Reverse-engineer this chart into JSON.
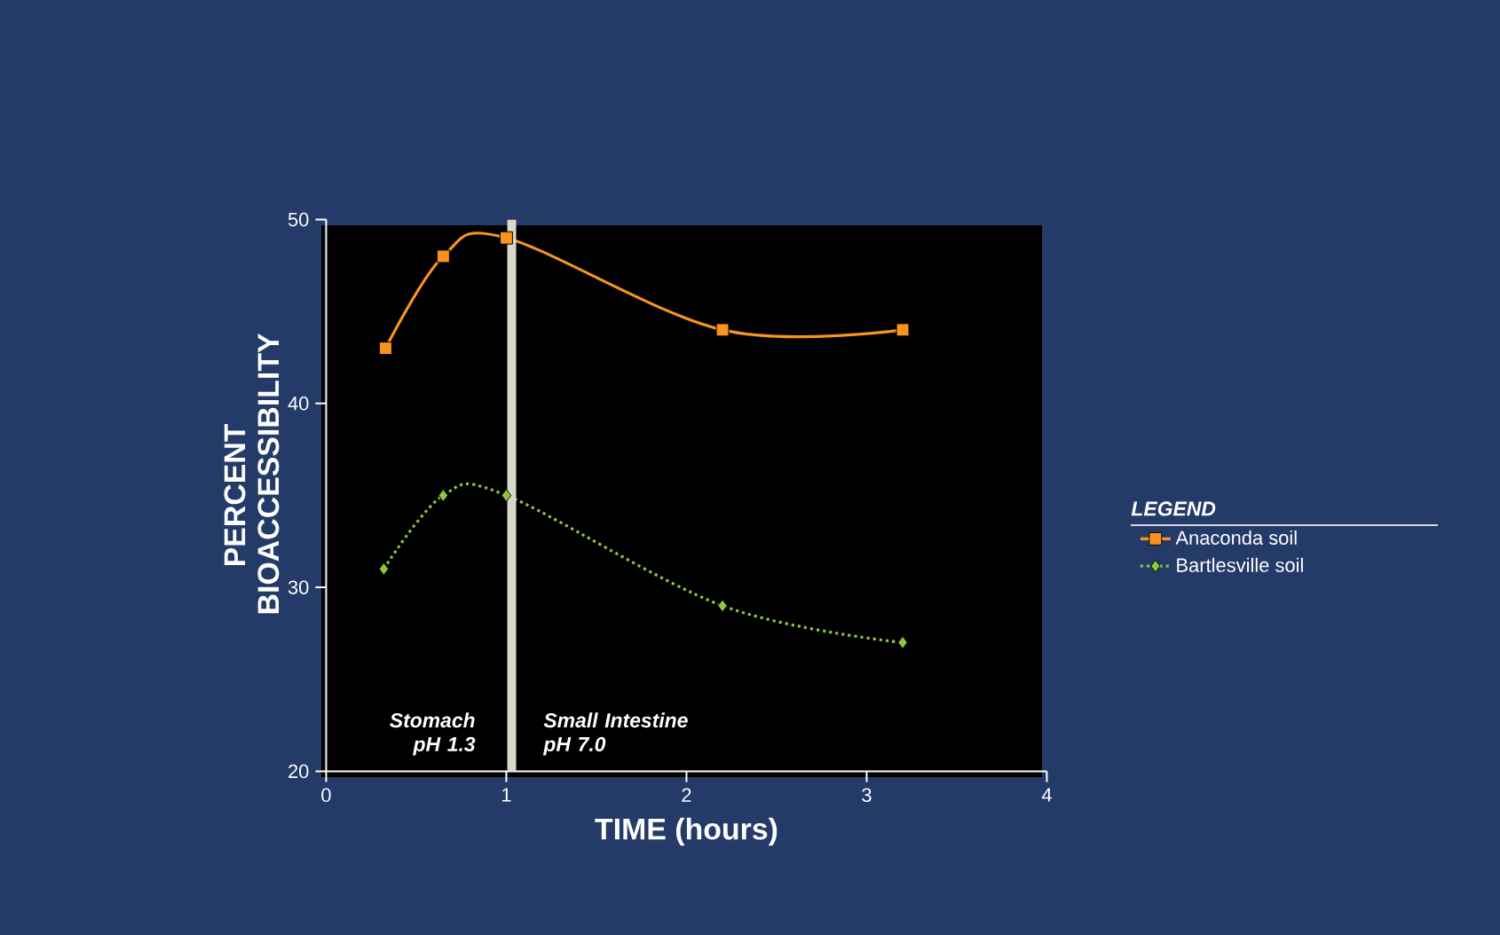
{
  "chart_data": {
    "type": "line",
    "xlabel": "TIME (hours)",
    "ylabel": "PERCENT BIOACCESSIBILITY",
    "legend_title": "LEGEND",
    "xlim": [
      0,
      4
    ],
    "xticks": [
      0,
      1,
      2,
      3,
      4
    ],
    "ylim": [
      20,
      50
    ],
    "yticks": [
      20,
      30,
      40,
      50
    ],
    "legend": "right",
    "grid": false,
    "series": [
      {
        "name": "Anaconda soil",
        "color": "#f7941d",
        "marker": "square",
        "line_style": "solid",
        "x": [
          0.33,
          0.65,
          1.0,
          2.2,
          3.2
        ],
        "values": [
          43,
          48,
          49,
          44,
          44
        ]
      },
      {
        "name": "Bartlesville soil",
        "color": "#8dc63f",
        "marker": "diamond",
        "line_style": "dotted",
        "x": [
          0.32,
          0.65,
          1.0,
          2.2,
          3.2
        ],
        "values": [
          31,
          35,
          35,
          29,
          27
        ]
      }
    ],
    "ref_lines": [
      {
        "axis": "x",
        "value": 1.03,
        "color": "#d9d6cc"
      }
    ],
    "annotations": [
      "Stomach pH 1.3",
      "Small Intestine pH 7.0"
    ]
  }
}
